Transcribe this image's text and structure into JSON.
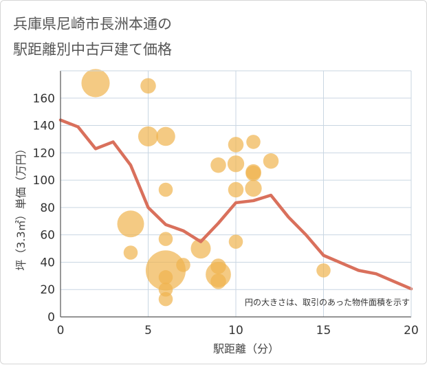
{
  "chart_data": {
    "type": "scatter",
    "title_lines": [
      "兵庫県尼崎市長洲本通の",
      "駅距離別中古戸建て価格"
    ],
    "xlabel": "駅距離（分）",
    "ylabel": "坪（3.3㎡）単価（万円）",
    "xlim": [
      0,
      20
    ],
    "ylim": [
      0,
      180
    ],
    "x_ticks": [
      0,
      5,
      10,
      15,
      20
    ],
    "y_ticks": [
      0,
      20,
      40,
      60,
      80,
      100,
      120,
      140,
      160
    ],
    "note": "円の大きさは、取引のあった物件面積を示す",
    "colors": {
      "bubble": "#f0b44f",
      "line": "#d9705c",
      "grid": "#c9d6e2",
      "axis": "#555555"
    },
    "bubbles": [
      {
        "x": 2,
        "y": 171,
        "size": 10
      },
      {
        "x": 5,
        "y": 169,
        "size": 3
      },
      {
        "x": 5,
        "y": 132,
        "size": 5
      },
      {
        "x": 6,
        "y": 132,
        "size": 4.5
      },
      {
        "x": 6,
        "y": 93,
        "size": 2.5
      },
      {
        "x": 4,
        "y": 68,
        "size": 9
      },
      {
        "x": 4,
        "y": 47,
        "size": 2.5
      },
      {
        "x": 6,
        "y": 57,
        "size": 2.5
      },
      {
        "x": 6,
        "y": 34,
        "size": 20
      },
      {
        "x": 6,
        "y": 29,
        "size": 2.5
      },
      {
        "x": 6,
        "y": 20,
        "size": 2.5
      },
      {
        "x": 6,
        "y": 13,
        "size": 2.5
      },
      {
        "x": 7,
        "y": 38,
        "size": 2.5
      },
      {
        "x": 8,
        "y": 50,
        "size": 5
      },
      {
        "x": 9,
        "y": 111,
        "size": 3
      },
      {
        "x": 9,
        "y": 37,
        "size": 3
      },
      {
        "x": 9,
        "y": 31,
        "size": 8
      },
      {
        "x": 9,
        "y": 26,
        "size": 3
      },
      {
        "x": 10,
        "y": 126,
        "size": 3
      },
      {
        "x": 10,
        "y": 112,
        "size": 3.5
      },
      {
        "x": 10,
        "y": 93,
        "size": 3
      },
      {
        "x": 10,
        "y": 55,
        "size": 2.5
      },
      {
        "x": 11,
        "y": 128,
        "size": 2.5
      },
      {
        "x": 11,
        "y": 106,
        "size": 3
      },
      {
        "x": 11,
        "y": 105,
        "size": 3
      },
      {
        "x": 11,
        "y": 94,
        "size": 3.5
      },
      {
        "x": 12,
        "y": 114,
        "size": 3
      },
      {
        "x": 15,
        "y": 34,
        "size": 2.5
      }
    ],
    "line": {
      "x": [
        0,
        1,
        2,
        3,
        4,
        5,
        6,
        7,
        8,
        9,
        10,
        11,
        12,
        13,
        14,
        15,
        16,
        17,
        18,
        19,
        20
      ],
      "y": [
        144,
        139,
        123,
        128,
        111,
        80,
        67.5,
        63,
        55,
        68.5,
        83.5,
        85,
        89,
        73,
        60,
        45,
        39.5,
        34,
        31.5,
        26,
        20.5
      ]
    }
  }
}
